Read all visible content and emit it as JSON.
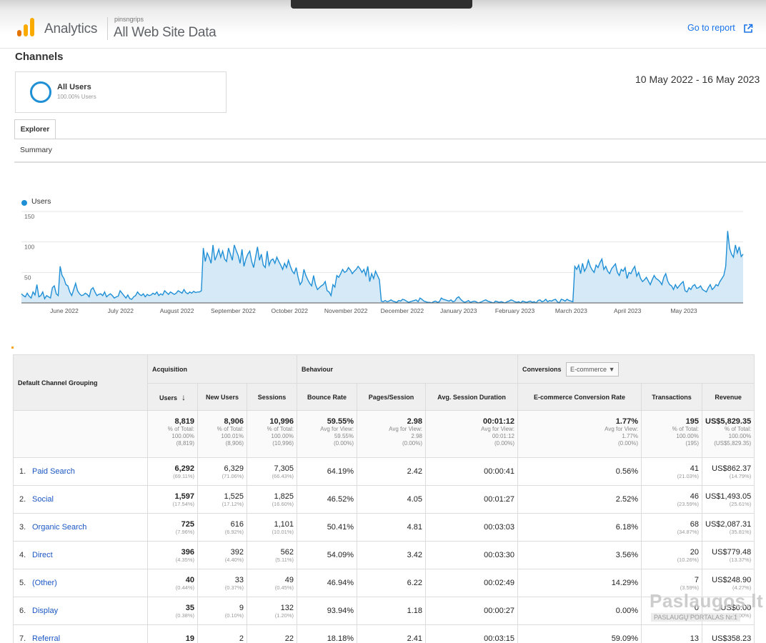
{
  "header": {
    "app_name": "Analytics",
    "account": "pinsngrips",
    "property": "All Web Site Data",
    "go_to_report": "Go to report"
  },
  "page_title": "Channels",
  "segment": {
    "name": "All Users",
    "percent": "100.00% Users"
  },
  "date_range": "10 May 2022 - 16 May 2023",
  "tabs": {
    "explorer": "Explorer",
    "summary": "Summary"
  },
  "chart_data": {
    "type": "area",
    "series": [
      {
        "name": "Users",
        "values": [
          15,
          12,
          10,
          16,
          11,
          8,
          18,
          13,
          30,
          10,
          12,
          18,
          7,
          12,
          10,
          8,
          25,
          28,
          15,
          12,
          60,
          45,
          40,
          30,
          28,
          18,
          12,
          22,
          32,
          20,
          15,
          12,
          13,
          16,
          14,
          10,
          22,
          25,
          18,
          12,
          14,
          15,
          12,
          18,
          10,
          13,
          15,
          12,
          8,
          10,
          11,
          20,
          16,
          12,
          8,
          13,
          7,
          6,
          10,
          12,
          18,
          14,
          12,
          15,
          10,
          14,
          12,
          13,
          16,
          14,
          18,
          12,
          15,
          13,
          20,
          17,
          14,
          18,
          16,
          14,
          16,
          20,
          18,
          16,
          22,
          17,
          15,
          18,
          16,
          19,
          17,
          18,
          18,
          20,
          90,
          68,
          82,
          75,
          65,
          95,
          70,
          78,
          88,
          75,
          85,
          72,
          68,
          90,
          80,
          70,
          95,
          86,
          78,
          65,
          88,
          60,
          72,
          80,
          85,
          68,
          58,
          75,
          92,
          70,
          80,
          62,
          58,
          85,
          62,
          70,
          72,
          65,
          75,
          68,
          62,
          55,
          65,
          58,
          70,
          60,
          52,
          48,
          58,
          42,
          30,
          35,
          55,
          45,
          38,
          32,
          28,
          45,
          30,
          22,
          25,
          28,
          30,
          35,
          20,
          18,
          12,
          30,
          26,
          45,
          42,
          48,
          55,
          50,
          52,
          58,
          54,
          48,
          52,
          55,
          60,
          56,
          50,
          55,
          45,
          60,
          35,
          48,
          40,
          52,
          45,
          38,
          3,
          2,
          4,
          2,
          3,
          5,
          3,
          2,
          1,
          4,
          3,
          6,
          5,
          3,
          1,
          2,
          3,
          4,
          5,
          2,
          8,
          6,
          3,
          2,
          1,
          1,
          0,
          2,
          3,
          1,
          2,
          8,
          6,
          5,
          4,
          3,
          5,
          2,
          3,
          8,
          10,
          6,
          3,
          1,
          2,
          4,
          1,
          2,
          3,
          2,
          0,
          1,
          2,
          4,
          5,
          3,
          2,
          1,
          0,
          3,
          2,
          1,
          2,
          1,
          0,
          2,
          3,
          5,
          4,
          2,
          1,
          2,
          0,
          3,
          2,
          1,
          2,
          3,
          1,
          2,
          0,
          4,
          5,
          2,
          3,
          6,
          2,
          4,
          3,
          5,
          6,
          2,
          0,
          6,
          5,
          3,
          6,
          4,
          3,
          2,
          60,
          55,
          62,
          48,
          65,
          52,
          58,
          70,
          60,
          54,
          50,
          62,
          58,
          66,
          72,
          55,
          60,
          52,
          48,
          56,
          60,
          64,
          50,
          45,
          55,
          52,
          58,
          40,
          50,
          48,
          55,
          60,
          44,
          50,
          40,
          35,
          38,
          42,
          36,
          30,
          38,
          45,
          40,
          38,
          35,
          30,
          42,
          48,
          36,
          30,
          28,
          22,
          30,
          24,
          28,
          32,
          35,
          20,
          18,
          25,
          22,
          28,
          30,
          24,
          25,
          28,
          22,
          20,
          18,
          25,
          30,
          22,
          25,
          30,
          28,
          35,
          40,
          45,
          60,
          118,
          90,
          80,
          75,
          95,
          82,
          92,
          76,
          80
        ],
        "color": "#1f8fd6"
      }
    ],
    "x_tick_labels": [
      "June 2022",
      "July 2022",
      "August 2022",
      "September 2022",
      "October 2022",
      "November 2022",
      "December 2022",
      "January 2023",
      "February 2023",
      "March 2023",
      "April 2023",
      "May 2023"
    ],
    "y_tick_labels": [
      "150",
      "100",
      "50"
    ],
    "ylim": [
      0,
      150
    ],
    "grid": true,
    "legend_position": "top-left"
  },
  "table": {
    "dimension_header": "Default Channel Grouping",
    "groups": {
      "acquisition": "Acquisition",
      "behaviour": "Behaviour",
      "conversions": "Conversions",
      "conversion_select": "E-commerce"
    },
    "columns": [
      "Users",
      "New Users",
      "Sessions",
      "Bounce Rate",
      "Pages/Session",
      "Avg. Session Duration",
      "E-commerce Conversion Rate",
      "Transactions",
      "Revenue"
    ],
    "totals": [
      {
        "value": "8,819",
        "l1": "% of Total:",
        "l2": "100.00%",
        "l3": "(8,819)"
      },
      {
        "value": "8,906",
        "l1": "% of Total:",
        "l2": "100.01%",
        "l3": "(8,906)"
      },
      {
        "value": "10,996",
        "l1": "% of Total:",
        "l2": "100.00%",
        "l3": "(10,996)"
      },
      {
        "value": "59.55%",
        "l1": "Avg for View:",
        "l2": "59.55%",
        "l3": "(0.00%)"
      },
      {
        "value": "2.98",
        "l1": "Avg for View:",
        "l2": "2.98",
        "l3": "(0.00%)"
      },
      {
        "value": "00:01:12",
        "l1": "Avg for View:",
        "l2": "00:01:12",
        "l3": "(0.00%)"
      },
      {
        "value": "1.77%",
        "l1": "Avg for View:",
        "l2": "1.77%",
        "l3": "(0.00%)"
      },
      {
        "value": "195",
        "l1": "% of Total:",
        "l2": "100.00%",
        "l3": "(195)"
      },
      {
        "value": "US$5,829.35",
        "l1": "% of Total:",
        "l2": "100.00%",
        "l3": "(US$5,829.35)"
      }
    ],
    "rows": [
      {
        "idx": "1.",
        "name": "Paid Search",
        "users": "6,292",
        "users_pct": "(69.11%)",
        "new_users": "6,329",
        "new_users_pct": "(71.06%)",
        "sessions": "7,305",
        "sessions_pct": "(66.43%)",
        "bounce": "64.19%",
        "pages": "2.42",
        "duration": "00:00:41",
        "conv_rate": "0.56%",
        "transactions": "41",
        "transactions_pct": "(21.03%)",
        "revenue": "US$862.37",
        "revenue_pct": "(14.79%)"
      },
      {
        "idx": "2.",
        "name": "Social",
        "users": "1,597",
        "users_pct": "(17.54%)",
        "new_users": "1,525",
        "new_users_pct": "(17.12%)",
        "sessions": "1,825",
        "sessions_pct": "(16.60%)",
        "bounce": "46.52%",
        "pages": "4.05",
        "duration": "00:01:27",
        "conv_rate": "2.52%",
        "transactions": "46",
        "transactions_pct": "(23.59%)",
        "revenue": "US$1,493.05",
        "revenue_pct": "(25.61%)"
      },
      {
        "idx": "3.",
        "name": "Organic Search",
        "users": "725",
        "users_pct": "(7.96%)",
        "new_users": "616",
        "new_users_pct": "(6.92%)",
        "sessions": "1,101",
        "sessions_pct": "(10.01%)",
        "bounce": "50.41%",
        "pages": "4.81",
        "duration": "00:03:03",
        "conv_rate": "6.18%",
        "transactions": "68",
        "transactions_pct": "(34.87%)",
        "revenue": "US$2,087.31",
        "revenue_pct": "(35.81%)"
      },
      {
        "idx": "4.",
        "name": "Direct",
        "users": "396",
        "users_pct": "(4.35%)",
        "new_users": "392",
        "new_users_pct": "(4.40%)",
        "sessions": "562",
        "sessions_pct": "(5.11%)",
        "bounce": "54.09%",
        "pages": "3.42",
        "duration": "00:03:30",
        "conv_rate": "3.56%",
        "transactions": "20",
        "transactions_pct": "(10.26%)",
        "revenue": "US$779.48",
        "revenue_pct": "(13.37%)"
      },
      {
        "idx": "5.",
        "name": "(Other)",
        "users": "40",
        "users_pct": "(0.44%)",
        "new_users": "33",
        "new_users_pct": "(0.37%)",
        "sessions": "49",
        "sessions_pct": "(0.45%)",
        "bounce": "46.94%",
        "pages": "6.22",
        "duration": "00:02:49",
        "conv_rate": "14.29%",
        "transactions": "7",
        "transactions_pct": "(3.59%)",
        "revenue": "US$248.90",
        "revenue_pct": "(4.27%)"
      },
      {
        "idx": "6.",
        "name": "Display",
        "users": "35",
        "users_pct": "(0.38%)",
        "new_users": "9",
        "new_users_pct": "(0.10%)",
        "sessions": "132",
        "sessions_pct": "(1.20%)",
        "bounce": "93.94%",
        "pages": "1.18",
        "duration": "00:00:27",
        "conv_rate": "0.00%",
        "transactions": "0",
        "transactions_pct": "(0.00%)",
        "revenue": "US$0.00",
        "revenue_pct": "(0.00%)"
      },
      {
        "idx": "7.",
        "name": "Referral",
        "users": "19",
        "users_pct": "",
        "new_users": "2",
        "new_users_pct": "",
        "sessions": "22",
        "sessions_pct": "",
        "bounce": "18.18%",
        "pages": "2.41",
        "duration": "00:03:15",
        "conv_rate": "59.09%",
        "transactions": "13",
        "transactions_pct": "",
        "revenue": "US$358.23",
        "revenue_pct": ""
      }
    ]
  },
  "watermark": {
    "top": "Paslaugos.lt",
    "bottom": "PASLAUGŲ PORTALAS  Nr.1"
  },
  "colors": {
    "accent": "#1f8fd6",
    "link": "#1a56c4",
    "goto_link": "#1a73e8"
  }
}
